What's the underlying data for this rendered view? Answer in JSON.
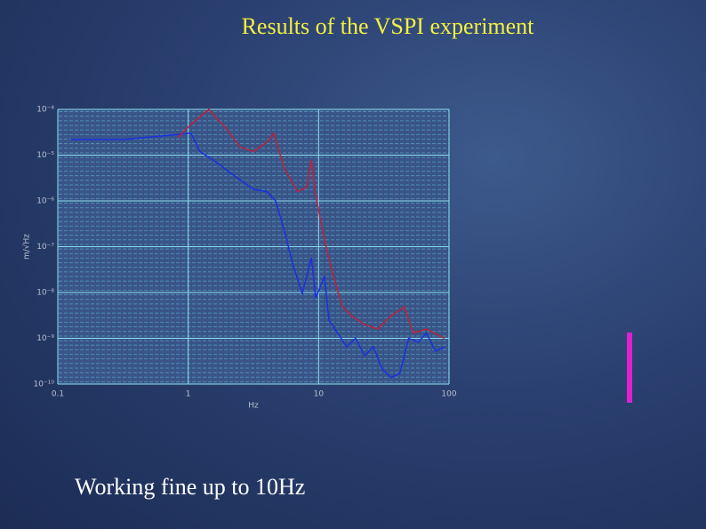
{
  "title": "Results of the VSPI experiment",
  "caption": "Working fine up to 10Hz",
  "chart_data": {
    "type": "line",
    "xscale": "log",
    "yscale": "log",
    "grid": true,
    "xlabel": "Hz",
    "ylabel": "m/√Hz",
    "xlim": [
      0.1,
      100
    ],
    "xticks": [
      0.1,
      1,
      10,
      100
    ],
    "ylim": [
      1e-10,
      0.0001
    ],
    "yticks": [
      {
        "value": 1e-10,
        "label": "10⁻¹⁰"
      },
      {
        "value": 1e-09,
        "label": "10⁻⁹"
      },
      {
        "value": 1e-08,
        "label": "10⁻⁸"
      },
      {
        "value": 1e-07,
        "label": "10⁻⁷"
      },
      {
        "value": 1e-06,
        "label": "10⁻⁶"
      },
      {
        "value": 1e-05,
        "label": "10⁻⁵"
      },
      {
        "value": 0.0001,
        "label": "10⁻⁴"
      }
    ],
    "series": [
      {
        "color": "#1a2fe0",
        "x": [
          0.126,
          0.32,
          0.71,
          1.05,
          1.23,
          1.56,
          2.13,
          3.16,
          4.0,
          4.68,
          5.47,
          6.4,
          7.5,
          8.8,
          9.5,
          11.1,
          12.0,
          14.0,
          16.4,
          19.2,
          22.5,
          26.3,
          30.8,
          36,
          42,
          49,
          58,
          67,
          79,
          92
        ],
        "values": [
          2.2e-05,
          2.2e-05,
          2.7e-05,
          3e-05,
          1.2e-05,
          7.8e-06,
          4e-06,
          1.8e-06,
          1.6e-06,
          1e-06,
          2.2e-07,
          3.7e-08,
          9.6e-09,
          5.7e-08,
          7.6e-09,
          2.3e-08,
          2.5e-09,
          1.3e-09,
          6.5e-10,
          1e-09,
          4.2e-10,
          6.5e-10,
          2.1e-10,
          1.4e-10,
          1.7e-10,
          1e-09,
          8.2e-10,
          1.3e-09,
          5.2e-10,
          6.5e-10
        ]
      },
      {
        "color": "#c0203a",
        "x": [
          0.83,
          1.05,
          1.44,
          1.97,
          2.5,
          3.16,
          4.0,
          4.53,
          5.47,
          6.9,
          8.1,
          8.8,
          9.5,
          11.1,
          13.0,
          15.2,
          17.8,
          22.5,
          28.4,
          36,
          45.5,
          53,
          67,
          92
        ],
        "values": [
          2.4e-05,
          4.7e-05,
          0.0001,
          3.7e-05,
          1.5e-05,
          1.2e-05,
          1.9e-05,
          3e-05,
          5e-06,
          1.6e-06,
          2e-06,
          7.8e-06,
          1.3e-06,
          1.4e-07,
          2.3e-08,
          4.9e-09,
          3.1e-09,
          2e-09,
          1.6e-09,
          3.1e-09,
          4.9e-09,
          1.3e-09,
          1.6e-09,
          1e-09
        ]
      }
    ]
  }
}
